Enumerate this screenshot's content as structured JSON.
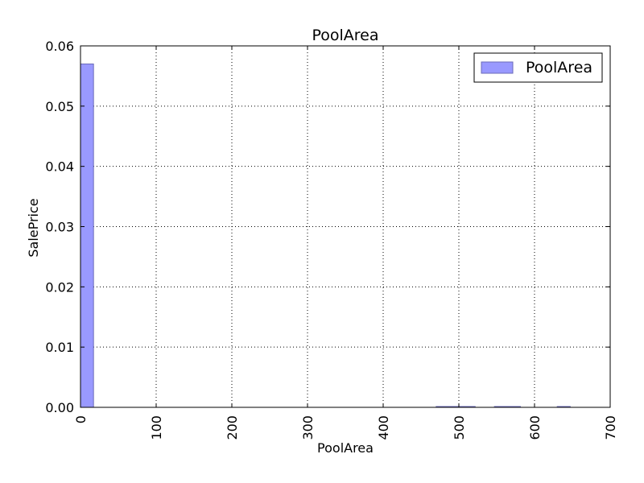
{
  "chart_data": {
    "type": "bar",
    "title": "PoolArea",
    "xlabel": "PoolArea",
    "ylabel": "SalePrice",
    "xlim": [
      0,
      700
    ],
    "ylim": [
      0,
      0.06
    ],
    "xticks": [
      0,
      100,
      200,
      300,
      400,
      500,
      600,
      700
    ],
    "yticks": [
      0.0,
      0.01,
      0.02,
      0.03,
      0.04,
      0.05,
      0.06
    ],
    "ytick_labels": [
      "0.00",
      "0.01",
      "0.02",
      "0.03",
      "0.04",
      "0.05",
      "0.06"
    ],
    "xtick_rotation": "vertical",
    "grid": true,
    "grid_style": "dotted",
    "legend": {
      "position": "top-right",
      "entries": [
        "PoolArea"
      ]
    },
    "bar_color": "#9999ff",
    "bar_edge_color": "#6a6ab8",
    "series": [
      {
        "name": "PoolArea",
        "bins": [
          {
            "x0": 0,
            "x1": 17.2,
            "value": 0.057
          },
          {
            "x0": 470,
            "x1": 487.2,
            "value": 0.0001
          },
          {
            "x0": 487.2,
            "x1": 504.4,
            "value": 0.0001
          },
          {
            "x0": 504.4,
            "x1": 521.6,
            "value": 0.0001
          },
          {
            "x0": 547,
            "x1": 564.2,
            "value": 0.0001
          },
          {
            "x0": 564.2,
            "x1": 581.4,
            "value": 0.0001
          },
          {
            "x0": 630,
            "x1": 647.2,
            "value": 0.0001
          }
        ]
      }
    ]
  }
}
